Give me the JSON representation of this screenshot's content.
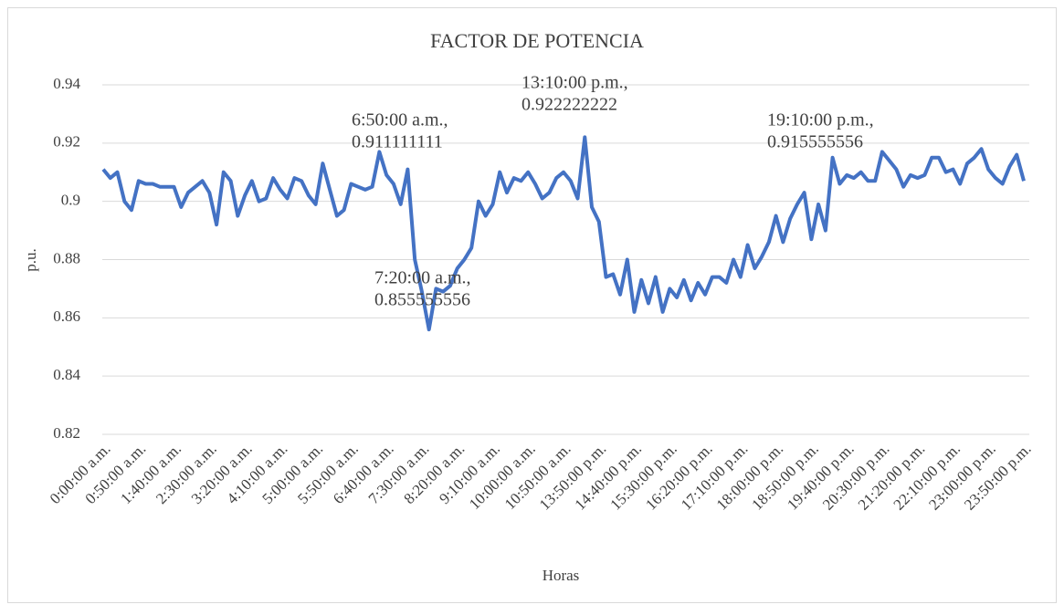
{
  "chart_data": {
    "type": "line",
    "title": "FACTOR DE POTENCIA",
    "x_label": "Horas",
    "y_label": "p.u.",
    "categories": [
      "0:00:00 a.m.",
      null,
      null,
      null,
      null,
      "0:50:00 a.m.",
      null,
      null,
      null,
      null,
      "1:40:00 a.m.",
      null,
      null,
      null,
      null,
      "2:30:00 a.m.",
      null,
      null,
      null,
      null,
      "3:20:00 a.m.",
      null,
      null,
      null,
      null,
      "4:10:00 a.m.",
      null,
      null,
      null,
      null,
      "5:00:00 a.m.",
      null,
      null,
      null,
      null,
      "5:50:00 a.m.",
      null,
      null,
      null,
      null,
      "6:40:00 a.m.",
      null,
      null,
      null,
      null,
      "7:30:00 a.m.",
      null,
      null,
      null,
      null,
      "8:20:00 a.m.",
      null,
      null,
      null,
      null,
      "9:10:00 a.m.",
      null,
      null,
      null,
      null,
      "10:00:00 a.m.",
      null,
      null,
      null,
      null,
      "10:50:00 a.m.",
      null,
      null,
      null,
      null,
      "13:50:00 p.m.",
      null,
      null,
      null,
      null,
      "14:40:00 p.m.",
      null,
      null,
      null,
      null,
      "15:30:00 p.m.",
      null,
      null,
      null,
      null,
      "16:20:00 p.m.",
      null,
      null,
      null,
      null,
      "17:10:00 p.m.",
      null,
      null,
      null,
      null,
      "18:00:00 p.m.",
      null,
      null,
      null,
      null,
      "18:50:00 p.m.",
      null,
      null,
      null,
      null,
      "19:40:00 p.m.",
      null,
      null,
      null,
      null,
      "20:30:00 p.m.",
      null,
      null,
      null,
      null,
      "21:20:00 p.m.",
      null,
      null,
      null,
      null,
      "22:10:00 p.m.",
      null,
      null,
      null,
      null,
      "23:00:00 p.m.",
      null,
      null,
      null,
      null,
      "23:50:00 p.m."
    ],
    "series": [
      {
        "name": "Factor de potencia",
        "color": "#4472c4",
        "values": [
          0.911,
          0.908,
          0.91,
          0.9,
          0.897,
          0.907,
          0.906,
          0.906,
          0.905,
          0.905,
          0.905,
          0.898,
          0.903,
          0.905,
          0.907,
          0.903,
          0.892,
          0.91,
          0.907,
          0.895,
          0.902,
          0.907,
          0.9,
          0.901,
          0.908,
          0.904,
          0.901,
          0.908,
          0.907,
          0.902,
          0.899,
          0.913,
          0.904,
          0.895,
          0.897,
          0.906,
          0.905,
          0.904,
          0.905,
          0.917,
          0.909,
          0.906,
          0.899,
          0.911,
          0.88,
          0.869,
          0.856,
          0.87,
          0.869,
          0.871,
          0.877,
          0.88,
          0.884,
          0.9,
          0.895,
          0.899,
          0.91,
          0.903,
          0.908,
          0.907,
          0.91,
          0.906,
          0.901,
          0.903,
          0.908,
          0.91,
          0.907,
          0.901,
          0.922,
          0.898,
          0.893,
          0.874,
          0.875,
          0.868,
          0.88,
          0.862,
          0.873,
          0.865,
          0.874,
          0.862,
          0.87,
          0.867,
          0.873,
          0.866,
          0.872,
          0.868,
          0.874,
          0.874,
          0.872,
          0.88,
          0.874,
          0.885,
          0.877,
          0.881,
          0.886,
          0.895,
          0.886,
          0.894,
          0.899,
          0.903,
          0.887,
          0.899,
          0.89,
          0.915,
          0.906,
          0.909,
          0.908,
          0.91,
          0.907,
          0.907,
          0.917,
          0.914,
          0.911,
          0.905,
          0.909,
          0.908,
          0.909,
          0.915,
          0.915,
          0.91,
          0.911,
          0.906,
          0.913,
          0.915,
          0.918,
          0.911,
          0.908,
          0.906,
          0.912,
          0.916,
          0.907
        ]
      }
    ],
    "ylim": [
      0.82,
      0.94
    ],
    "yticks": [
      0.82,
      0.84,
      0.86,
      0.88,
      0.9,
      0.92,
      0.94
    ],
    "grid": true,
    "annotations": [
      [
        "6:50:00 a.m.,",
        "0.911111111"
      ],
      [
        "13:10:00 p.m.,",
        "0.922222222"
      ],
      [
        "19:10:00 p.m.,",
        "0.915555556"
      ],
      [
        "7:20:00 a.m.,",
        "0.855555556"
      ]
    ]
  }
}
